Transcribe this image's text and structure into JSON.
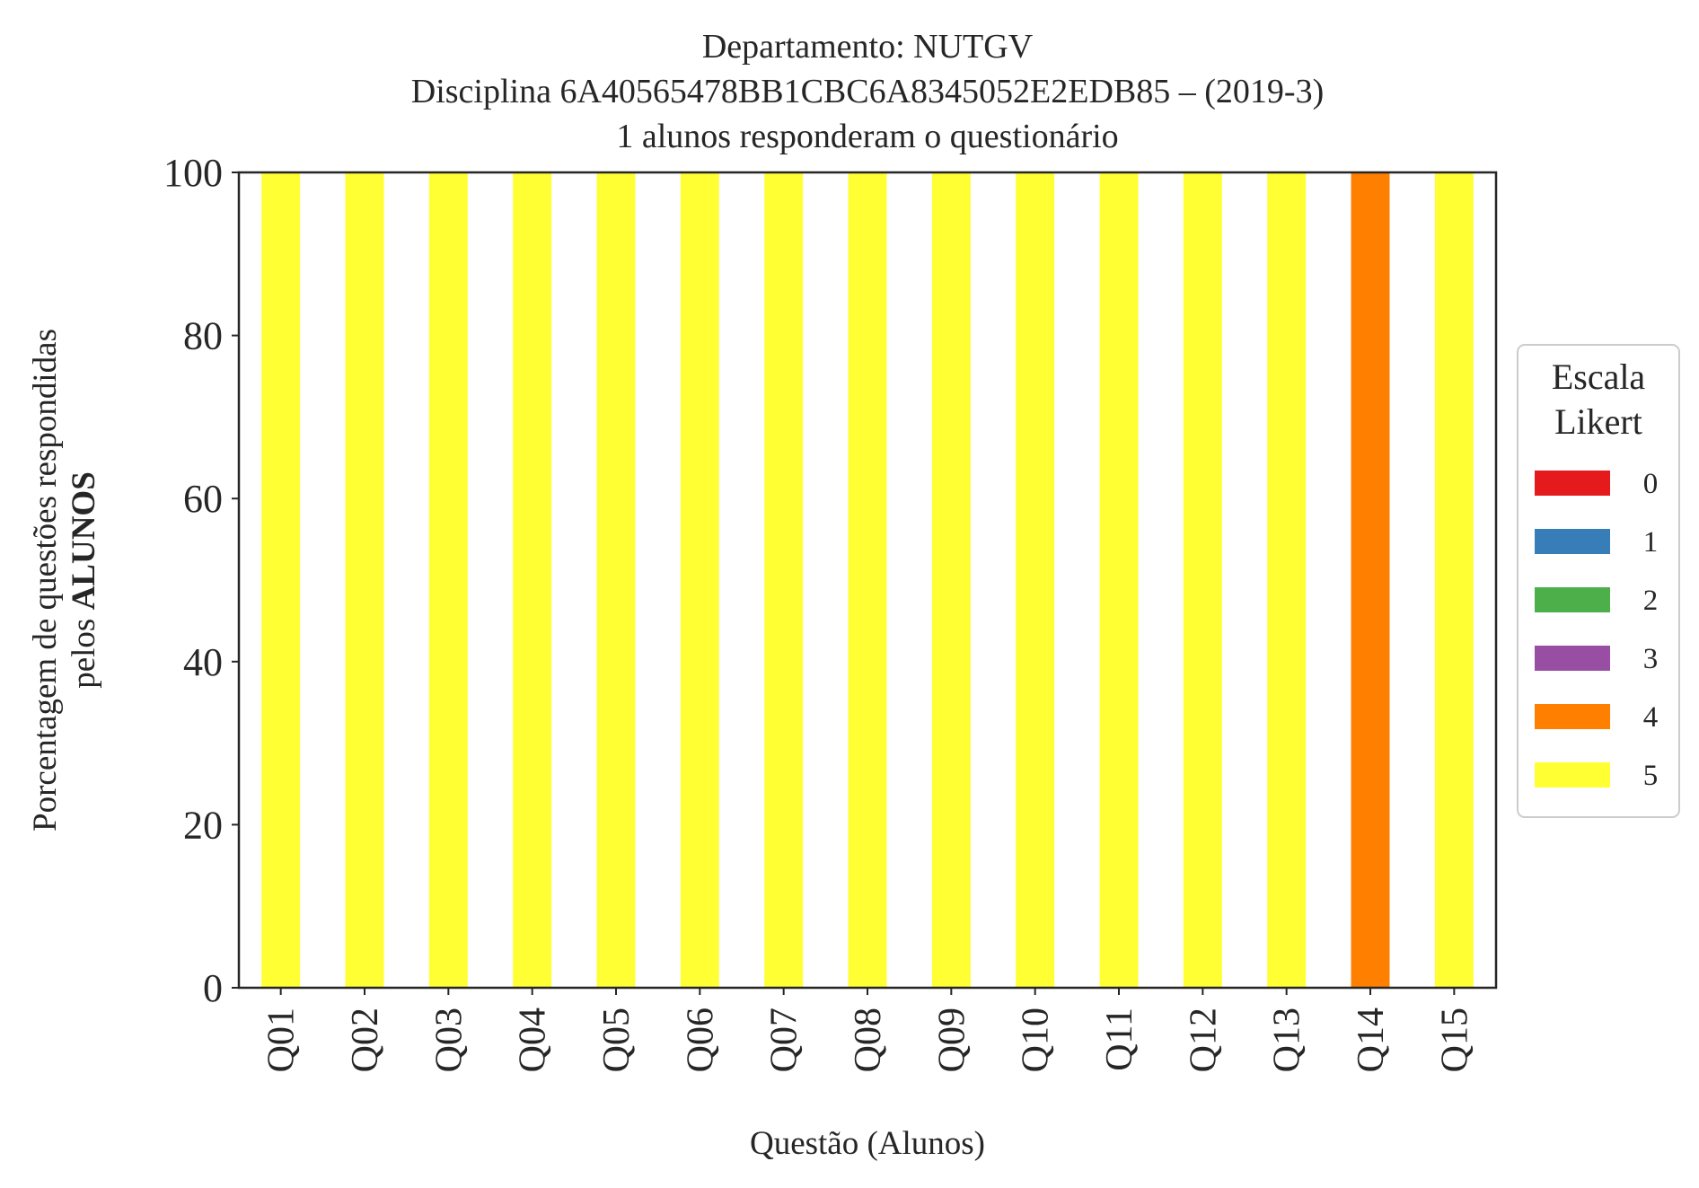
{
  "chart_data": {
    "type": "bar",
    "stacked": true,
    "title_lines": [
      "Departamento: NUTGV",
      "Disciplina 6A40565478BB1CBC6A8345052E2EDB85 – (2019-3)",
      "1 alunos responderam o questionário"
    ],
    "xlabel": "Questão (Alunos)",
    "ylabel_line1": "Porcentagem de questões respondidas",
    "ylabel_line2_prefix": "pelos ",
    "ylabel_line2_bold": "ALUNOS",
    "ylim": [
      0,
      100
    ],
    "yticks": [
      0,
      20,
      40,
      60,
      80,
      100
    ],
    "categories": [
      "Q01",
      "Q02",
      "Q03",
      "Q04",
      "Q05",
      "Q06",
      "Q07",
      "Q08",
      "Q09",
      "Q10",
      "Q11",
      "Q12",
      "Q13",
      "Q14",
      "Q15"
    ],
    "series": [
      {
        "name": "0",
        "color": "#e41a1c",
        "values": [
          0,
          0,
          0,
          0,
          0,
          0,
          0,
          0,
          0,
          0,
          0,
          0,
          0,
          0,
          0
        ]
      },
      {
        "name": "1",
        "color": "#377eb8",
        "values": [
          0,
          0,
          0,
          0,
          0,
          0,
          0,
          0,
          0,
          0,
          0,
          0,
          0,
          0,
          0
        ]
      },
      {
        "name": "2",
        "color": "#4daf4a",
        "values": [
          0,
          0,
          0,
          0,
          0,
          0,
          0,
          0,
          0,
          0,
          0,
          0,
          0,
          0,
          0
        ]
      },
      {
        "name": "3",
        "color": "#984ea3",
        "values": [
          0,
          0,
          0,
          0,
          0,
          0,
          0,
          0,
          0,
          0,
          0,
          0,
          0,
          0,
          0
        ]
      },
      {
        "name": "4",
        "color": "#ff7f00",
        "values": [
          0,
          0,
          0,
          0,
          0,
          0,
          0,
          0,
          0,
          0,
          0,
          0,
          0,
          100,
          0
        ]
      },
      {
        "name": "5",
        "color": "#ffff33",
        "values": [
          100,
          100,
          100,
          100,
          100,
          100,
          100,
          100,
          100,
          100,
          100,
          100,
          100,
          0,
          100
        ]
      }
    ],
    "legend": {
      "title_lines": [
        "Escala",
        "Likert"
      ],
      "placement": "center-right, outside plot"
    },
    "grid": false
  }
}
